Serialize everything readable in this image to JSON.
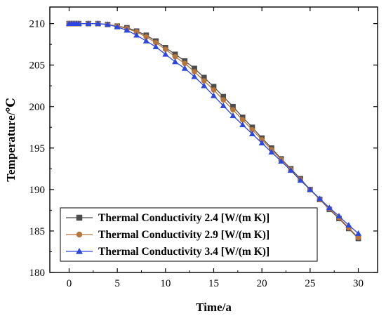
{
  "chart_data": {
    "type": "line",
    "xlabel": "Time/a",
    "ylabel": "Temperature/℃",
    "xlim": [
      -2,
      32
    ],
    "ylim": [
      180,
      212
    ],
    "xticks": [
      0,
      5,
      10,
      15,
      20,
      25,
      30
    ],
    "yticks": [
      180,
      185,
      190,
      195,
      200,
      205,
      210
    ],
    "grid": false,
    "legend_position": "bottom-left",
    "x": [
      0,
      0.25,
      0.5,
      0.75,
      1,
      2,
      3,
      4,
      5,
      6,
      7,
      8,
      9,
      10,
      11,
      12,
      13,
      14,
      15,
      16,
      17,
      18,
      19,
      20,
      21,
      22,
      23,
      24,
      25,
      26,
      27,
      28,
      29,
      30
    ],
    "series": [
      {
        "name": "Thermal Conductivity 2.4 [W/(m K)]",
        "color": "#4d4d4d",
        "marker": "square",
        "values": [
          210.0,
          210.0,
          210.0,
          210.0,
          210.0,
          210.0,
          210.0,
          209.9,
          209.7,
          209.5,
          209.1,
          208.6,
          207.9,
          207.1,
          206.3,
          205.5,
          204.6,
          203.5,
          202.4,
          201.2,
          200.0,
          198.7,
          197.5,
          196.2,
          195.0,
          193.7,
          192.5,
          191.3,
          190.0,
          188.8,
          187.6,
          186.5,
          185.3,
          184.1
        ]
      },
      {
        "name": "Thermal Conductivity 2.9 [W/(m K)]",
        "color": "#b8763b",
        "marker": "circle",
        "values": [
          210.0,
          210.0,
          210.0,
          210.0,
          210.0,
          210.0,
          210.0,
          209.9,
          209.7,
          209.4,
          209.0,
          208.4,
          207.7,
          206.9,
          206.0,
          205.2,
          204.2,
          203.1,
          202.0,
          200.8,
          199.6,
          198.4,
          197.2,
          196.0,
          194.8,
          193.6,
          192.4,
          191.2,
          190.0,
          188.8,
          187.7,
          186.6,
          185.4,
          184.2
        ]
      },
      {
        "name": "Thermal Conductivity 3.4 [W/(m K)]",
        "color": "#2b47e0",
        "marker": "triangle",
        "values": [
          210.0,
          210.0,
          210.0,
          210.0,
          210.0,
          210.0,
          210.0,
          209.9,
          209.6,
          209.2,
          208.6,
          207.9,
          207.2,
          206.3,
          205.4,
          204.6,
          203.6,
          202.5,
          201.3,
          200.1,
          198.9,
          197.8,
          196.7,
          195.6,
          194.5,
          193.4,
          192.3,
          191.1,
          190.0,
          188.9,
          187.8,
          186.8,
          185.7,
          184.7
        ]
      }
    ]
  }
}
